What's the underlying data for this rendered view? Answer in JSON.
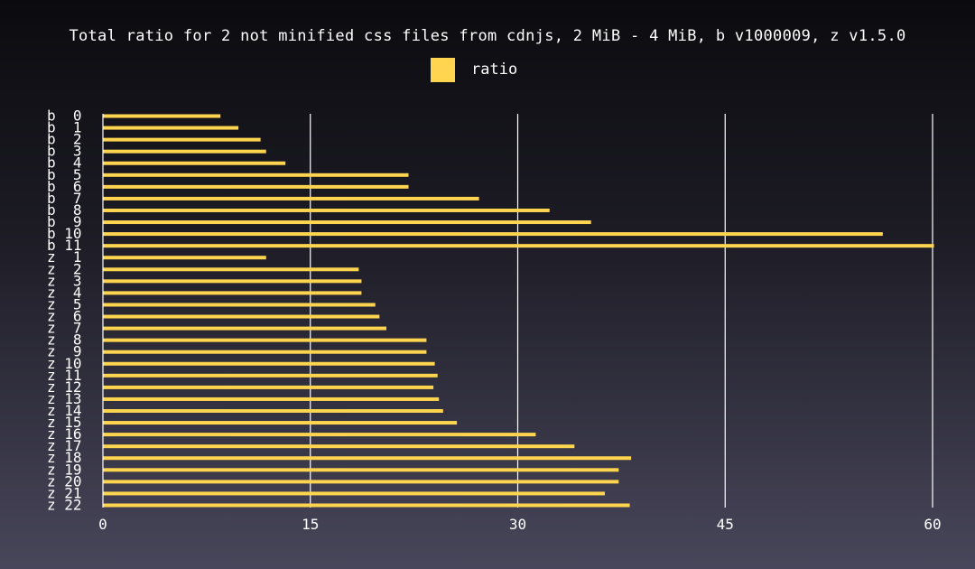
{
  "chart_data": {
    "type": "bar",
    "orientation": "horizontal",
    "title": "Total ratio for 2 not minified css files from cdnjs, 2 MiB - 4 MiB, b v1000009, z v1.5.0",
    "xlabel": "",
    "ylabel": "",
    "xlim": [
      0,
      60
    ],
    "x_ticks": [
      "0",
      "15",
      "30",
      "45",
      "60"
    ],
    "grid": "vertical",
    "legend_position": "top-center",
    "series": [
      {
        "name": "ratio",
        "color": "#ffd54f",
        "values": [
          8.5,
          9.8,
          11.4,
          11.8,
          13.2,
          22.1,
          22.1,
          27.2,
          32.3,
          35.3,
          56.4,
          60.1,
          11.8,
          18.5,
          18.7,
          18.7,
          19.7,
          20.0,
          20.5,
          23.4,
          23.4,
          24.0,
          24.2,
          23.9,
          24.3,
          24.6,
          25.6,
          31.3,
          34.1,
          38.2,
          37.3,
          37.3,
          36.3,
          38.1
        ]
      }
    ],
    "categories": [
      "b  0",
      "b  1",
      "b  2",
      "b  3",
      "b  4",
      "b  5",
      "b  6",
      "b  7",
      "b  8",
      "b  9",
      "b 10",
      "b 11",
      "z  1",
      "z  2",
      "z  3",
      "z  4",
      "z  5",
      "z  6",
      "z  7",
      "z  8",
      "z  9",
      "z 10",
      "z 11",
      "z 12",
      "z 13",
      "z 14",
      "z 15",
      "z 16",
      "z 17",
      "z 18",
      "z 19",
      "z 20",
      "z 21",
      "z 22"
    ]
  }
}
